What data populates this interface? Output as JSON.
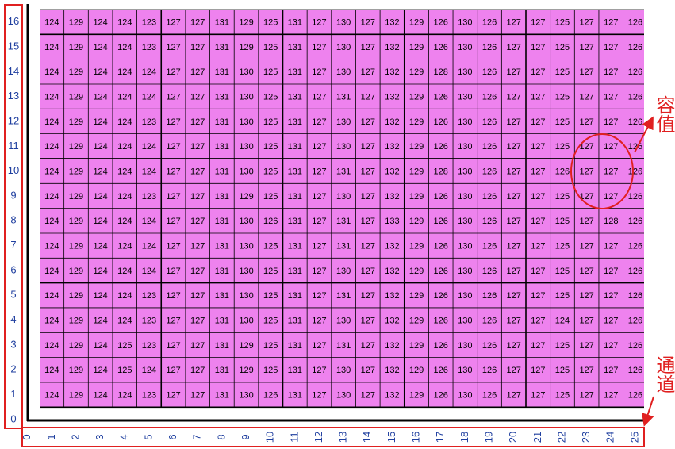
{
  "y_labels": [
    0,
    1,
    2,
    3,
    4,
    5,
    6,
    7,
    8,
    9,
    10,
    11,
    12,
    13,
    14,
    15,
    16
  ],
  "x_labels": [
    0,
    1,
    2,
    3,
    4,
    5,
    6,
    7,
    8,
    9,
    10,
    11,
    12,
    13,
    14,
    15,
    16,
    17,
    18,
    19,
    20,
    21,
    22,
    23,
    24,
    25
  ],
  "rows": [
    [
      124,
      129,
      124,
      124,
      123,
      127,
      127,
      131,
      129,
      125,
      131,
      127,
      130,
      127,
      132,
      129,
      126,
      130,
      126,
      127,
      127,
      125,
      127,
      127,
      126
    ],
    [
      124,
      129,
      124,
      124,
      123,
      127,
      127,
      131,
      129,
      125,
      131,
      127,
      130,
      127,
      132,
      129,
      126,
      130,
      126,
      127,
      127,
      125,
      127,
      127,
      126
    ],
    [
      124,
      129,
      124,
      124,
      124,
      127,
      127,
      131,
      130,
      125,
      131,
      127,
      130,
      127,
      132,
      129,
      128,
      130,
      126,
      127,
      127,
      125,
      127,
      127,
      126
    ],
    [
      124,
      129,
      124,
      124,
      124,
      127,
      127,
      131,
      130,
      125,
      131,
      127,
      131,
      127,
      132,
      129,
      126,
      130,
      126,
      127,
      127,
      125,
      127,
      127,
      126
    ],
    [
      124,
      129,
      124,
      124,
      123,
      127,
      127,
      131,
      130,
      125,
      131,
      127,
      130,
      127,
      132,
      129,
      126,
      130,
      126,
      127,
      127,
      125,
      127,
      127,
      126
    ],
    [
      124,
      129,
      124,
      124,
      124,
      127,
      127,
      131,
      130,
      125,
      131,
      127,
      130,
      127,
      132,
      129,
      126,
      130,
      126,
      127,
      127,
      125,
      127,
      127,
      126
    ],
    [
      124,
      129,
      124,
      124,
      124,
      127,
      127,
      131,
      130,
      125,
      131,
      127,
      131,
      127,
      132,
      129,
      128,
      130,
      126,
      127,
      127,
      126,
      127,
      127,
      126
    ],
    [
      124,
      129,
      124,
      124,
      123,
      127,
      127,
      131,
      129,
      125,
      131,
      127,
      130,
      127,
      132,
      129,
      126,
      130,
      126,
      127,
      127,
      125,
      127,
      127,
      126
    ],
    [
      124,
      129,
      124,
      124,
      124,
      127,
      127,
      131,
      130,
      126,
      131,
      127,
      131,
      127,
      133,
      129,
      126,
      130,
      126,
      127,
      127,
      125,
      127,
      128,
      126
    ],
    [
      124,
      129,
      124,
      124,
      124,
      127,
      127,
      131,
      130,
      125,
      131,
      127,
      131,
      127,
      132,
      129,
      126,
      130,
      126,
      127,
      127,
      125,
      127,
      127,
      126
    ],
    [
      124,
      129,
      124,
      124,
      124,
      127,
      127,
      131,
      130,
      125,
      131,
      127,
      130,
      127,
      132,
      129,
      126,
      130,
      126,
      127,
      127,
      125,
      127,
      127,
      126
    ],
    [
      124,
      129,
      124,
      124,
      123,
      127,
      127,
      131,
      130,
      125,
      131,
      127,
      131,
      127,
      132,
      129,
      126,
      130,
      126,
      127,
      127,
      125,
      127,
      127,
      126
    ],
    [
      124,
      129,
      124,
      124,
      123,
      127,
      127,
      131,
      130,
      125,
      131,
      127,
      130,
      127,
      132,
      129,
      126,
      130,
      126,
      127,
      127,
      124,
      127,
      127,
      126
    ],
    [
      124,
      129,
      124,
      125,
      123,
      127,
      127,
      131,
      129,
      125,
      131,
      127,
      131,
      127,
      132,
      129,
      126,
      130,
      126,
      127,
      127,
      125,
      127,
      127,
      126
    ],
    [
      124,
      129,
      124,
      125,
      124,
      127,
      127,
      131,
      129,
      125,
      131,
      127,
      130,
      127,
      132,
      129,
      126,
      130,
      126,
      127,
      127,
      125,
      127,
      127,
      126
    ],
    [
      124,
      129,
      124,
      124,
      123,
      127,
      127,
      131,
      130,
      126,
      131,
      127,
      130,
      127,
      132,
      129,
      126,
      130,
      126,
      127,
      127,
      125,
      127,
      127,
      126
    ]
  ],
  "annotations": {
    "capacitance": "容值",
    "channel": "通道"
  }
}
